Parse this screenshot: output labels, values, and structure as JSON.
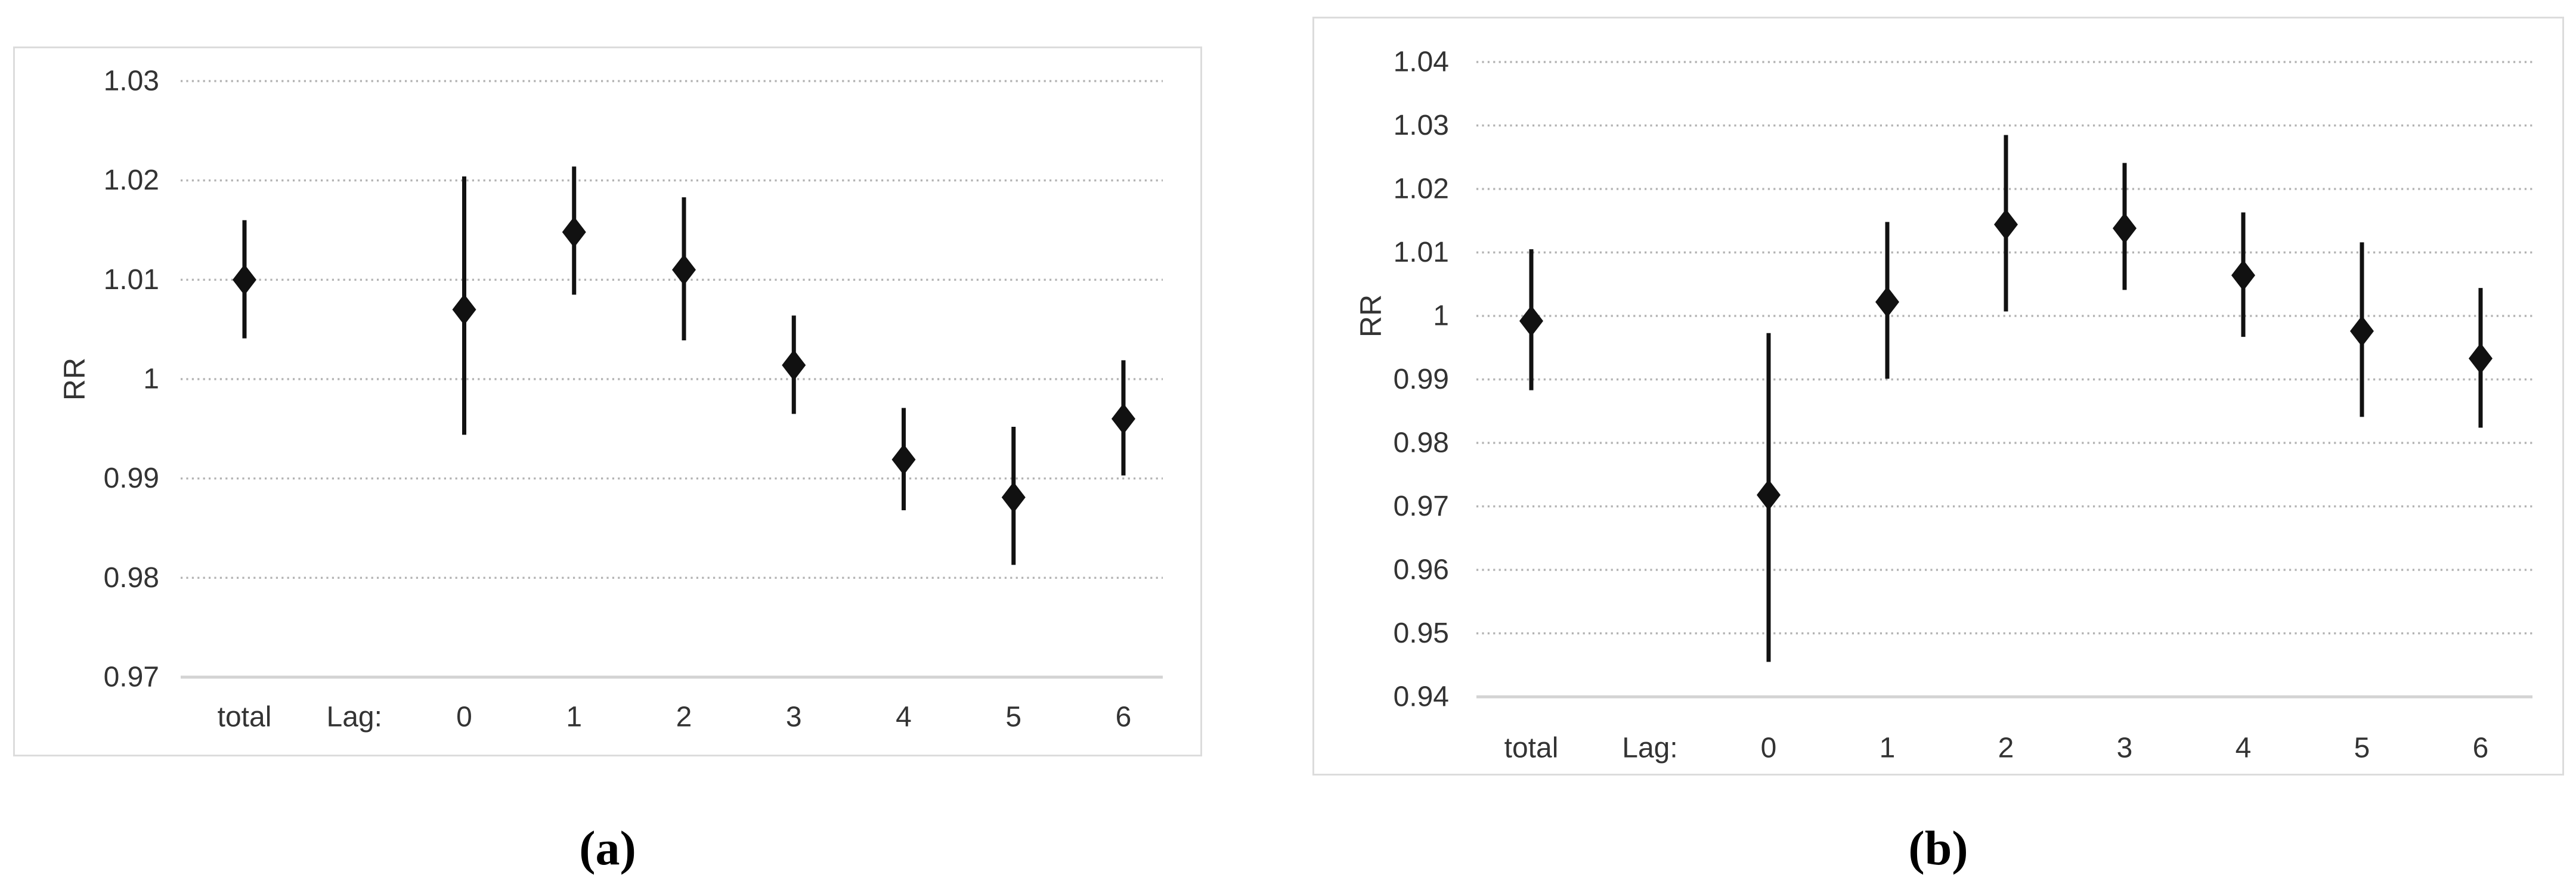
{
  "figure": {
    "description": "Two forest-style plots of relative risk (RR) point estimates with 95% confidence interval whiskers, for total exposure and single-day lags 0 through 6.",
    "marker_color": "#111111",
    "gridline_color": "#b3b3b3",
    "axisline_color": "#d3d3d3",
    "panel_border_color": "#dcdcdc",
    "text_color": "#333333"
  },
  "chart_data": [
    {
      "type": "scatter",
      "subtype": "point-estimates-with-error-bars",
      "caption": "(a)",
      "ylabel": "RR",
      "ylim": [
        0.97,
        1.03
      ],
      "ytick_step": 0.01,
      "ytick_labels": [
        "1.03",
        "1.02",
        "1.01",
        "1",
        "0.99",
        "0.98",
        "0.97"
      ],
      "x_axis_text": [
        "total",
        "Lag:",
        "0",
        "1",
        "2",
        "3",
        "4",
        "5",
        "6"
      ],
      "categories": [
        "total",
        "0",
        "1",
        "2",
        "3",
        "4",
        "5",
        "6"
      ],
      "point_slots": [
        0,
        2,
        3,
        4,
        5,
        6,
        7,
        8
      ],
      "grid": "horizontal-dotted",
      "legend": "none",
      "series": [
        {
          "name": "RR",
          "values": [
            1.01,
            1.007,
            1.0148,
            1.011,
            1.0014,
            0.9919,
            0.9881,
            0.996
          ]
        },
        {
          "name": "CI_low",
          "values": [
            1.0041,
            0.9944,
            1.0085,
            1.0039,
            0.9965,
            0.9868,
            0.9813,
            0.9903
          ]
        },
        {
          "name": "CI_high",
          "values": [
            1.016,
            1.0204,
            1.0214,
            1.0183,
            1.0064,
            0.9971,
            0.9952,
            1.0019
          ]
        }
      ]
    },
    {
      "type": "scatter",
      "subtype": "point-estimates-with-error-bars",
      "caption": "(b)",
      "ylabel": "RR",
      "ylim": [
        0.94,
        1.04
      ],
      "ytick_step": 0.01,
      "ytick_labels": [
        "1.04",
        "1.03",
        "1.02",
        "1.01",
        "1",
        "0.99",
        "0.98",
        "0.97",
        "0.96",
        "0.95",
        "0.94"
      ],
      "x_axis_text": [
        "total",
        "Lag:",
        "0",
        "1",
        "2",
        "3",
        "4",
        "5",
        "6"
      ],
      "categories": [
        "total",
        "0",
        "1",
        "2",
        "3",
        "4",
        "5",
        "6"
      ],
      "point_slots": [
        0,
        2,
        3,
        4,
        5,
        6,
        7,
        8
      ],
      "grid": "horizontal-dotted",
      "legend": "none",
      "series": [
        {
          "name": "RR",
          "values": [
            0.9992,
            0.9718,
            1.0022,
            1.0144,
            1.0138,
            1.0064,
            0.9976,
            0.9933
          ]
        },
        {
          "name": "CI_low",
          "values": [
            0.9883,
            0.9455,
            0.9901,
            1.0007,
            1.0041,
            0.9967,
            0.9841,
            0.9824
          ]
        },
        {
          "name": "CI_high",
          "values": [
            1.0105,
            0.9973,
            1.0148,
            1.0285,
            1.0241,
            1.0163,
            1.0116,
            1.0044
          ]
        }
      ]
    }
  ]
}
